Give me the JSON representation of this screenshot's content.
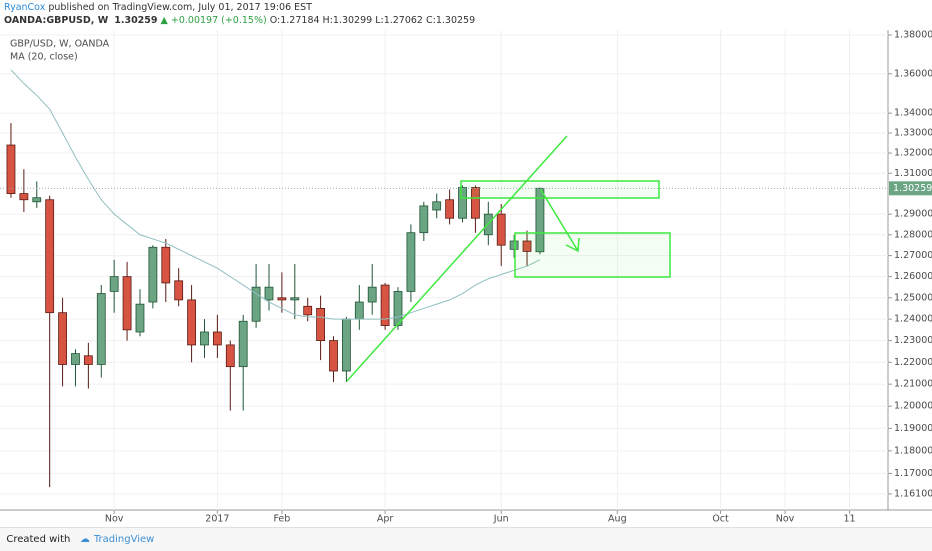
{
  "header": {
    "author": "RyanCox",
    "published": "published on TradingView.com, July 01, 2017 19:06 EST",
    "symbol": "OANDA:GBPUSD, W",
    "price": "1.30259",
    "change": "▲ +0.00197 (+0.15%)",
    "ohlc": "O:1.27184 H:1.30299 L:1.27062 C:1.30259"
  },
  "footer": {
    "created": "Created with",
    "brand": "TradingView"
  },
  "chart_data": {
    "type": "candlestick",
    "legend": [
      "GBP/USD, W, OANDA",
      "MA (20, close)"
    ],
    "up_color": "#6ba583",
    "down_color": "#d75442",
    "ma_color": "#8fbfc0",
    "log_scale": true,
    "grid": true,
    "ylim": [
      1.154,
      1.3826
    ],
    "yticks": [
      {
        "value": 1.38,
        "label": "1.38000"
      },
      {
        "value": 1.36,
        "label": "1.36000"
      },
      {
        "value": 1.34,
        "label": "1.34000"
      },
      {
        "value": 1.33,
        "label": "1.33000"
      },
      {
        "value": 1.32,
        "label": "1.32000"
      },
      {
        "value": 1.31,
        "label": "1.31000"
      },
      {
        "value": 1.29,
        "label": "1.29000"
      },
      {
        "value": 1.28,
        "label": "1.28000"
      },
      {
        "value": 1.27,
        "label": "1.27000"
      },
      {
        "value": 1.26,
        "label": "1.26000"
      },
      {
        "value": 1.25,
        "label": "1.25000"
      },
      {
        "value": 1.24,
        "label": "1.24000"
      },
      {
        "value": 1.23,
        "label": "1.23000"
      },
      {
        "value": 1.22,
        "label": "1.22000"
      },
      {
        "value": 1.21,
        "label": "1.21000"
      },
      {
        "value": 1.2,
        "label": "1.20000"
      },
      {
        "value": 1.19,
        "label": "1.19000"
      },
      {
        "value": 1.18,
        "label": "1.18000"
      },
      {
        "value": 1.17,
        "label": "1.17000"
      },
      {
        "value": 1.161,
        "label": "1.16100"
      }
    ],
    "xlim": [
      -0.85,
      67.98
    ],
    "xticks": [
      {
        "value": 8,
        "label": "Nov"
      },
      {
        "value": 16,
        "label": "2017"
      },
      {
        "value": 21,
        "label": "Feb"
      },
      {
        "value": 29,
        "label": "Apr"
      },
      {
        "value": 38,
        "label": "Jun"
      },
      {
        "value": 47,
        "label": "Aug"
      },
      {
        "value": 55,
        "label": "Oct"
      },
      {
        "value": 60,
        "label": "Nov"
      },
      {
        "value": 65,
        "label": "11"
      }
    ],
    "open": [
      1.324,
      1.3,
      1.296,
      1.297,
      1.243,
      1.219,
      1.223,
      1.219,
      1.253,
      1.26,
      1.234,
      1.248,
      1.274,
      1.258,
      1.249,
      1.228,
      1.234,
      1.228,
      1.218,
      1.239,
      1.249,
      1.25,
      1.249,
      1.246,
      1.245,
      1.23,
      1.216,
      1.24,
      1.248,
      1.256,
      1.237,
      1.253,
      1.281,
      1.292,
      1.297,
      1.288,
      1.303,
      1.28,
      1.29,
      1.273,
      1.277,
      1.27184
    ],
    "high": [
      1.335,
      1.312,
      1.306,
      1.299,
      1.25,
      1.226,
      1.229,
      1.256,
      1.268,
      1.267,
      1.254,
      1.275,
      1.278,
      1.264,
      1.256,
      1.24,
      1.242,
      1.23,
      1.242,
      1.266,
      1.266,
      1.262,
      1.266,
      1.25,
      1.251,
      1.232,
      1.241,
      1.256,
      1.266,
      1.257,
      1.255,
      1.285,
      1.296,
      1.3,
      1.302,
      1.304,
      1.304,
      1.296,
      1.295,
      1.28,
      1.282,
      1.30299
    ],
    "low": [
      1.298,
      1.291,
      1.293,
      1.164,
      1.209,
      1.209,
      1.208,
      1.213,
      1.243,
      1.23,
      1.232,
      1.245,
      1.248,
      1.246,
      1.22,
      1.222,
      1.222,
      1.198,
      1.198,
      1.236,
      1.244,
      1.243,
      1.24,
      1.239,
      1.221,
      1.211,
      1.211,
      1.235,
      1.242,
      1.235,
      1.235,
      1.248,
      1.277,
      1.288,
      1.285,
      1.286,
      1.281,
      1.275,
      1.265,
      1.269,
      1.265,
      1.27062
    ],
    "close": [
      1.3,
      1.297,
      1.298,
      1.243,
      1.219,
      1.224,
      1.219,
      1.252,
      1.26,
      1.235,
      1.247,
      1.274,
      1.257,
      1.249,
      1.228,
      1.234,
      1.228,
      1.218,
      1.239,
      1.255,
      1.255,
      1.249,
      1.25,
      1.242,
      1.23,
      1.216,
      1.24,
      1.248,
      1.255,
      1.237,
      1.253,
      1.281,
      1.294,
      1.296,
      1.288,
      1.303,
      1.288,
      1.29,
      1.275,
      1.277,
      1.272,
      1.30259
    ],
    "ma": [
      1.362,
      1.355,
      1.349,
      1.342,
      1.33,
      1.318,
      1.307,
      1.297,
      1.29,
      1.285,
      1.28,
      1.278,
      1.276,
      1.273,
      1.27,
      1.267,
      1.264,
      1.26,
      1.256,
      1.252,
      1.248,
      1.245,
      1.242,
      1.241,
      1.241,
      1.24,
      1.24,
      1.24,
      1.24,
      1.24,
      1.241,
      1.243,
      1.245,
      1.247,
      1.249,
      1.252,
      1.256,
      1.259,
      1.261,
      1.263,
      1.265,
      1.268
    ]
  }
}
